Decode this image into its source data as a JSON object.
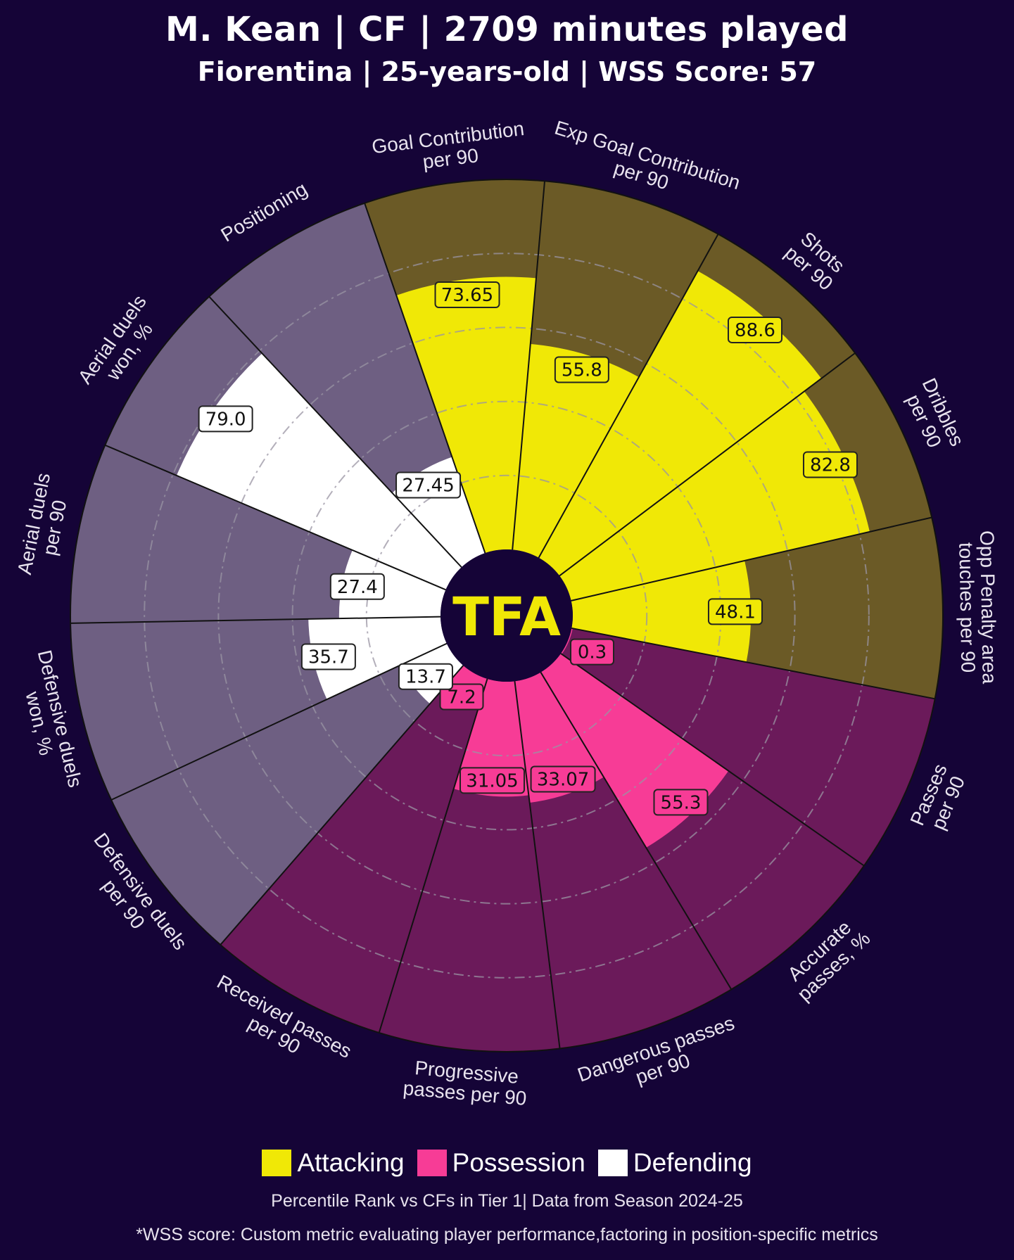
{
  "title": "M. Kean | CF | 2709 minutes played",
  "subtitle": "Fiorentina | 25-years-old | WSS Score: 57",
  "logo_text": "TFA",
  "legend": [
    {
      "label": "Attacking",
      "color": "#f0e806"
    },
    {
      "label": "Possession",
      "color": "#f73c96"
    },
    {
      "label": "Defending",
      "color": "#ffffff"
    }
  ],
  "footnote": "Percentile Rank vs CFs in Tier 1| Data from Season 2024-25",
  "footnote2": "*WSS score: Custom metric evaluating player performance,factoring in position-specific metrics",
  "chart_data": {
    "type": "radial-bar",
    "scale": [
      0,
      100
    ],
    "grid": true,
    "legend_position": "bottom",
    "colors": {
      "background": "#150437",
      "Attacking": {
        "fill": "#f0e806",
        "background": "#6b5a26"
      },
      "Possession": {
        "fill": "#f73c96",
        "background": "#6b1a5a"
      },
      "Defending": {
        "fill": "#ffffff",
        "background": "#6e5f82"
      }
    },
    "series": [
      {
        "label": [
          "Goal Contribution",
          "per 90"
        ],
        "value": 73.65,
        "value_label": "73.65",
        "group": "Attacking"
      },
      {
        "label": [
          "Exp Goal Contribution",
          "per 90"
        ],
        "value": 55.8,
        "value_label": "55.8",
        "group": "Attacking"
      },
      {
        "label": [
          "Shots",
          "per 90"
        ],
        "value": 88.6,
        "value_label": "88.6",
        "group": "Attacking"
      },
      {
        "label": [
          "Dribbles",
          "per 90"
        ],
        "value": 82.8,
        "value_label": "82.8",
        "group": "Attacking"
      },
      {
        "label": [
          "Opp Penalty area",
          "touches per 90"
        ],
        "value": 48.1,
        "value_label": "48.1",
        "group": "Attacking"
      },
      {
        "label": [
          "Passes",
          "per 90"
        ],
        "value": 0.3,
        "value_label": "0.3",
        "group": "Possession"
      },
      {
        "label": [
          "Accurate",
          "passes, %"
        ],
        "value": 55.3,
        "value_label": "55.3",
        "group": "Possession"
      },
      {
        "label": [
          "Dangerous passes",
          "per 90"
        ],
        "value": 33.07,
        "value_label": "33.07",
        "group": "Possession"
      },
      {
        "label": [
          "Progressive",
          "passes per 90"
        ],
        "value": 31.05,
        "value_label": "31.05",
        "group": "Possession"
      },
      {
        "label": [
          "Received passes",
          "per 90"
        ],
        "value": 7.2,
        "value_label": "7.2",
        "group": "Possession"
      },
      {
        "label": [
          "Defensive duels",
          "per 90"
        ],
        "value": 13.7,
        "value_label": "13.7",
        "group": "Defending"
      },
      {
        "label": [
          "Defensive duels",
          "won, %"
        ],
        "value": 35.7,
        "value_label": "35.7",
        "group": "Defending"
      },
      {
        "label": [
          "Aerial duels",
          "per 90"
        ],
        "value": 27.4,
        "value_label": "27.4",
        "group": "Defending"
      },
      {
        "label": [
          "Aerial duels",
          "won, %"
        ],
        "value": 79.0,
        "value_label": "79.0",
        "group": "Defending"
      },
      {
        "label": [
          "Positioning"
        ],
        "value": 27.45,
        "value_label": "27.45",
        "group": "Defending"
      }
    ]
  }
}
